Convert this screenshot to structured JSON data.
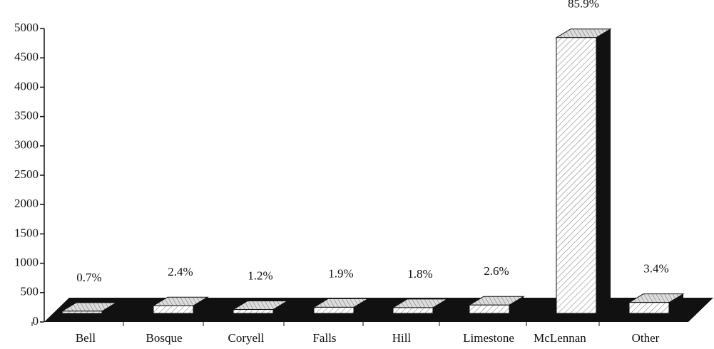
{
  "chart_data": {
    "type": "bar3d",
    "categories": [
      "Bell",
      "Bosque",
      "Coryell",
      "Falls",
      "Hill",
      "Limestone",
      "McLennan",
      "Other"
    ],
    "values": [
      38,
      131,
      66,
      104,
      98,
      142,
      4700,
      186
    ],
    "percent_labels": [
      "0.7%",
      "2.4%",
      "1.2%",
      "1.9%",
      "1.8%",
      "2.6%",
      "85.9%",
      "3.4%"
    ],
    "color": "#ffffff",
    "ylim": [
      0,
      5000
    ],
    "yticks": [
      0,
      500,
      1000,
      1500,
      2000,
      2500,
      3000,
      3500,
      4000,
      4500,
      5000
    ]
  }
}
